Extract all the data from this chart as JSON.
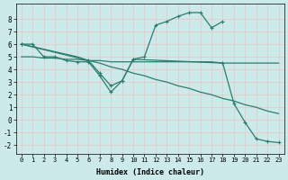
{
  "xlabel": "Humidex (Indice chaleur)",
  "background_color": "#cceaea",
  "grid_color": "#e8c8c8",
  "line_color": "#2d7d6e",
  "xlim": [
    -0.5,
    23.5
  ],
  "ylim": [
    -2.7,
    9.2
  ],
  "yticks": [
    -2,
    -1,
    0,
    1,
    2,
    3,
    4,
    5,
    6,
    7,
    8
  ],
  "xticks": [
    0,
    1,
    2,
    3,
    4,
    5,
    6,
    7,
    8,
    9,
    10,
    11,
    12,
    13,
    14,
    15,
    16,
    17,
    18,
    19,
    20,
    21,
    22,
    23
  ],
  "curve1_x": [
    0,
    1,
    2,
    3,
    4,
    5,
    6,
    7,
    8,
    9,
    10,
    11,
    12,
    13,
    14,
    15,
    16,
    17,
    18
  ],
  "curve1_y": [
    6.0,
    6.0,
    5.0,
    5.0,
    4.7,
    4.6,
    4.6,
    3.5,
    2.2,
    3.1,
    4.8,
    5.0,
    7.5,
    7.8,
    8.2,
    8.5,
    8.5,
    7.3,
    7.8
  ],
  "curve2_x": [
    0,
    1,
    2,
    3,
    4,
    5,
    6,
    7,
    8,
    9,
    10,
    11,
    12,
    13,
    14,
    15,
    16,
    17,
    18,
    19,
    20,
    21,
    22,
    23
  ],
  "curve2_y": [
    5.0,
    5.0,
    4.9,
    4.9,
    4.8,
    4.8,
    4.7,
    4.7,
    4.6,
    4.6,
    4.6,
    4.6,
    4.6,
    4.6,
    4.6,
    4.6,
    4.6,
    4.6,
    4.5,
    4.5,
    4.5,
    4.5,
    4.5,
    4.5
  ],
  "curve3_x": [
    0,
    1,
    2,
    3,
    4,
    5,
    6,
    7,
    8,
    9,
    10,
    11,
    12,
    13,
    14,
    15,
    16,
    17,
    18,
    19,
    20,
    21,
    22,
    23
  ],
  "curve3_y": [
    6.0,
    5.8,
    5.6,
    5.4,
    5.2,
    5.0,
    4.7,
    4.5,
    4.2,
    4.0,
    3.7,
    3.5,
    3.2,
    3.0,
    2.7,
    2.5,
    2.2,
    2.0,
    1.7,
    1.5,
    1.2,
    1.0,
    0.7,
    0.5
  ],
  "curve4_x": [
    0,
    6,
    7,
    8,
    9,
    10,
    18,
    19,
    20,
    21,
    22,
    23
  ],
  "curve4_y": [
    6.0,
    4.7,
    3.7,
    2.7,
    3.1,
    4.8,
    4.5,
    1.3,
    -0.2,
    -1.5,
    -1.7,
    -1.8
  ]
}
